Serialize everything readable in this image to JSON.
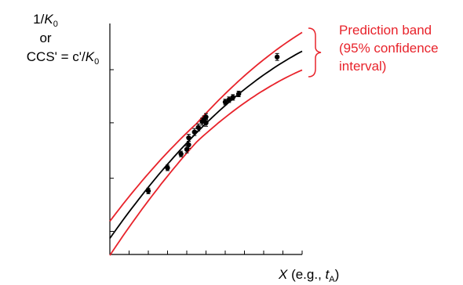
{
  "chart_data": {
    "type": "scatter",
    "title": "",
    "ylabel": {
      "line1_prefix": "1/",
      "line1_var": "K",
      "line1_sub": "0",
      "line2": "or",
      "line3_prefix": "CCS' = c'/",
      "line3_var": "K",
      "line3_sub": "0"
    },
    "xlabel": {
      "var": "X",
      "prefix": " (e.g., ",
      "sub_var": "t",
      "sub": "A",
      "suffix": ")"
    },
    "annotation": [
      "Prediction band",
      "(95% confidence",
      "interval)"
    ],
    "xlim": [
      0,
      1
    ],
    "ylim": [
      0,
      1
    ],
    "x_ticks": [
      0.1,
      0.2,
      0.3,
      0.4,
      0.5,
      0.6,
      0.7,
      0.8,
      0.9,
      1.0
    ],
    "y_ticks": [
      0.1,
      0.33,
      0.57,
      0.8
    ],
    "fit": {
      "a": 0.07,
      "b": 1.18,
      "c": -0.37
    },
    "band_offset": [
      0.04,
      0.075
    ],
    "points": [
      {
        "x": 0.2,
        "y": 0.275,
        "err": 0.012
      },
      {
        "x": 0.3,
        "y": 0.375,
        "err": 0.012
      },
      {
        "x": 0.37,
        "y": 0.435,
        "err": 0.012
      },
      {
        "x": 0.4,
        "y": 0.455,
        "err": 0.015
      },
      {
        "x": 0.41,
        "y": 0.475,
        "err": 0.015
      },
      {
        "x": 0.41,
        "y": 0.505,
        "err": 0.015
      },
      {
        "x": 0.44,
        "y": 0.53,
        "err": 0.015
      },
      {
        "x": 0.46,
        "y": 0.55,
        "err": 0.015
      },
      {
        "x": 0.48,
        "y": 0.575,
        "err": 0.015
      },
      {
        "x": 0.49,
        "y": 0.585,
        "err": 0.015
      },
      {
        "x": 0.5,
        "y": 0.57,
        "err": 0.015
      },
      {
        "x": 0.5,
        "y": 0.595,
        "err": 0.015
      },
      {
        "x": 0.6,
        "y": 0.66,
        "err": 0.012
      },
      {
        "x": 0.62,
        "y": 0.67,
        "err": 0.012
      },
      {
        "x": 0.64,
        "y": 0.68,
        "err": 0.012
      },
      {
        "x": 0.67,
        "y": 0.695,
        "err": 0.012
      },
      {
        "x": 0.87,
        "y": 0.855,
        "err": 0.015
      }
    ],
    "colors": {
      "fit": "#000000",
      "band": "#e8232b",
      "points": "#000000",
      "annotation": "#e8232b"
    }
  }
}
